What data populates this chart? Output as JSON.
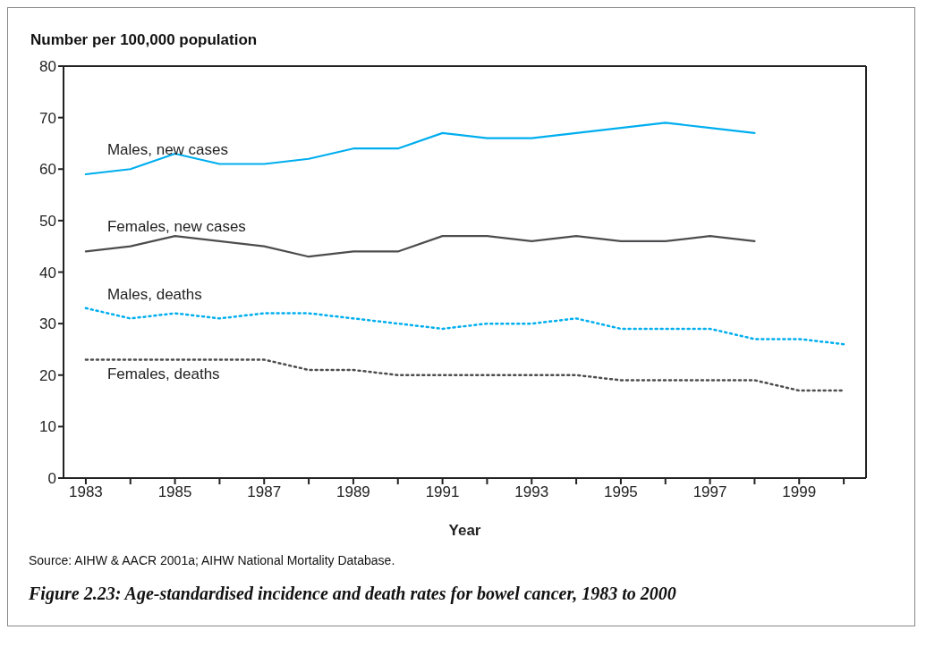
{
  "chart_data": {
    "type": "line",
    "title": "Figure 2.23: Age-standardised incidence and death rates for bowel cancer, 1983 to 2000",
    "ylabel": "Number per 100,000 population",
    "xlabel": "Year",
    "annotations": [
      "Source: AIHW & AACR 2001a; AIHW National Mortality Database."
    ],
    "x": [
      1983,
      1984,
      1985,
      1986,
      1987,
      1988,
      1989,
      1990,
      1991,
      1992,
      1993,
      1994,
      1995,
      1996,
      1997,
      1998,
      1999,
      2000
    ],
    "series": [
      {
        "name": "Males, new cases",
        "color": "#00aeef",
        "line_style": "solid",
        "values": [
          59,
          60,
          63,
          61,
          61,
          62,
          64,
          64,
          67,
          66,
          66,
          67,
          68,
          69,
          68,
          67,
          null,
          null
        ]
      },
      {
        "name": "Females, new cases",
        "color": "#4d4d4f",
        "line_style": "solid",
        "values": [
          44,
          45,
          47,
          46,
          45,
          43,
          44,
          44,
          47,
          47,
          46,
          47,
          46,
          46,
          47,
          46,
          null,
          null
        ]
      },
      {
        "name": "Males, deaths",
        "color": "#00aeef",
        "line_style": "dotted",
        "values": [
          33,
          31,
          32,
          31,
          32,
          32,
          31,
          30,
          29,
          30,
          30,
          31,
          29,
          29,
          29,
          27,
          27,
          26
        ]
      },
      {
        "name": "Females, deaths",
        "color": "#4d4d4f",
        "line_style": "dotted",
        "values": [
          23,
          23,
          23,
          23,
          23,
          21,
          21,
          20,
          20,
          20,
          20,
          20,
          19,
          19,
          19,
          19,
          17,
          17
        ]
      }
    ],
    "xlim": [
      1982.5,
      2000.5
    ],
    "xticks": [
      1983,
      {
        "value": 1984,
        "label": null
      },
      1985,
      {
        "value": 1986,
        "label": null
      },
      1987,
      {
        "value": 1988,
        "label": null
      },
      1989,
      {
        "value": 1990,
        "label": null
      },
      1991,
      {
        "value": 1992,
        "label": null
      },
      1993,
      {
        "value": 1994,
        "label": null
      },
      1995,
      {
        "value": 1996,
        "label": null
      },
      1997,
      {
        "value": 1998,
        "label": null
      },
      1999,
      {
        "value": 2000,
        "label": null
      }
    ],
    "ylim": [
      0,
      80
    ],
    "yticks": [
      0,
      10,
      20,
      30,
      40,
      50,
      60,
      70,
      80
    ],
    "grid": false,
    "legend": false,
    "marker": "none"
  }
}
